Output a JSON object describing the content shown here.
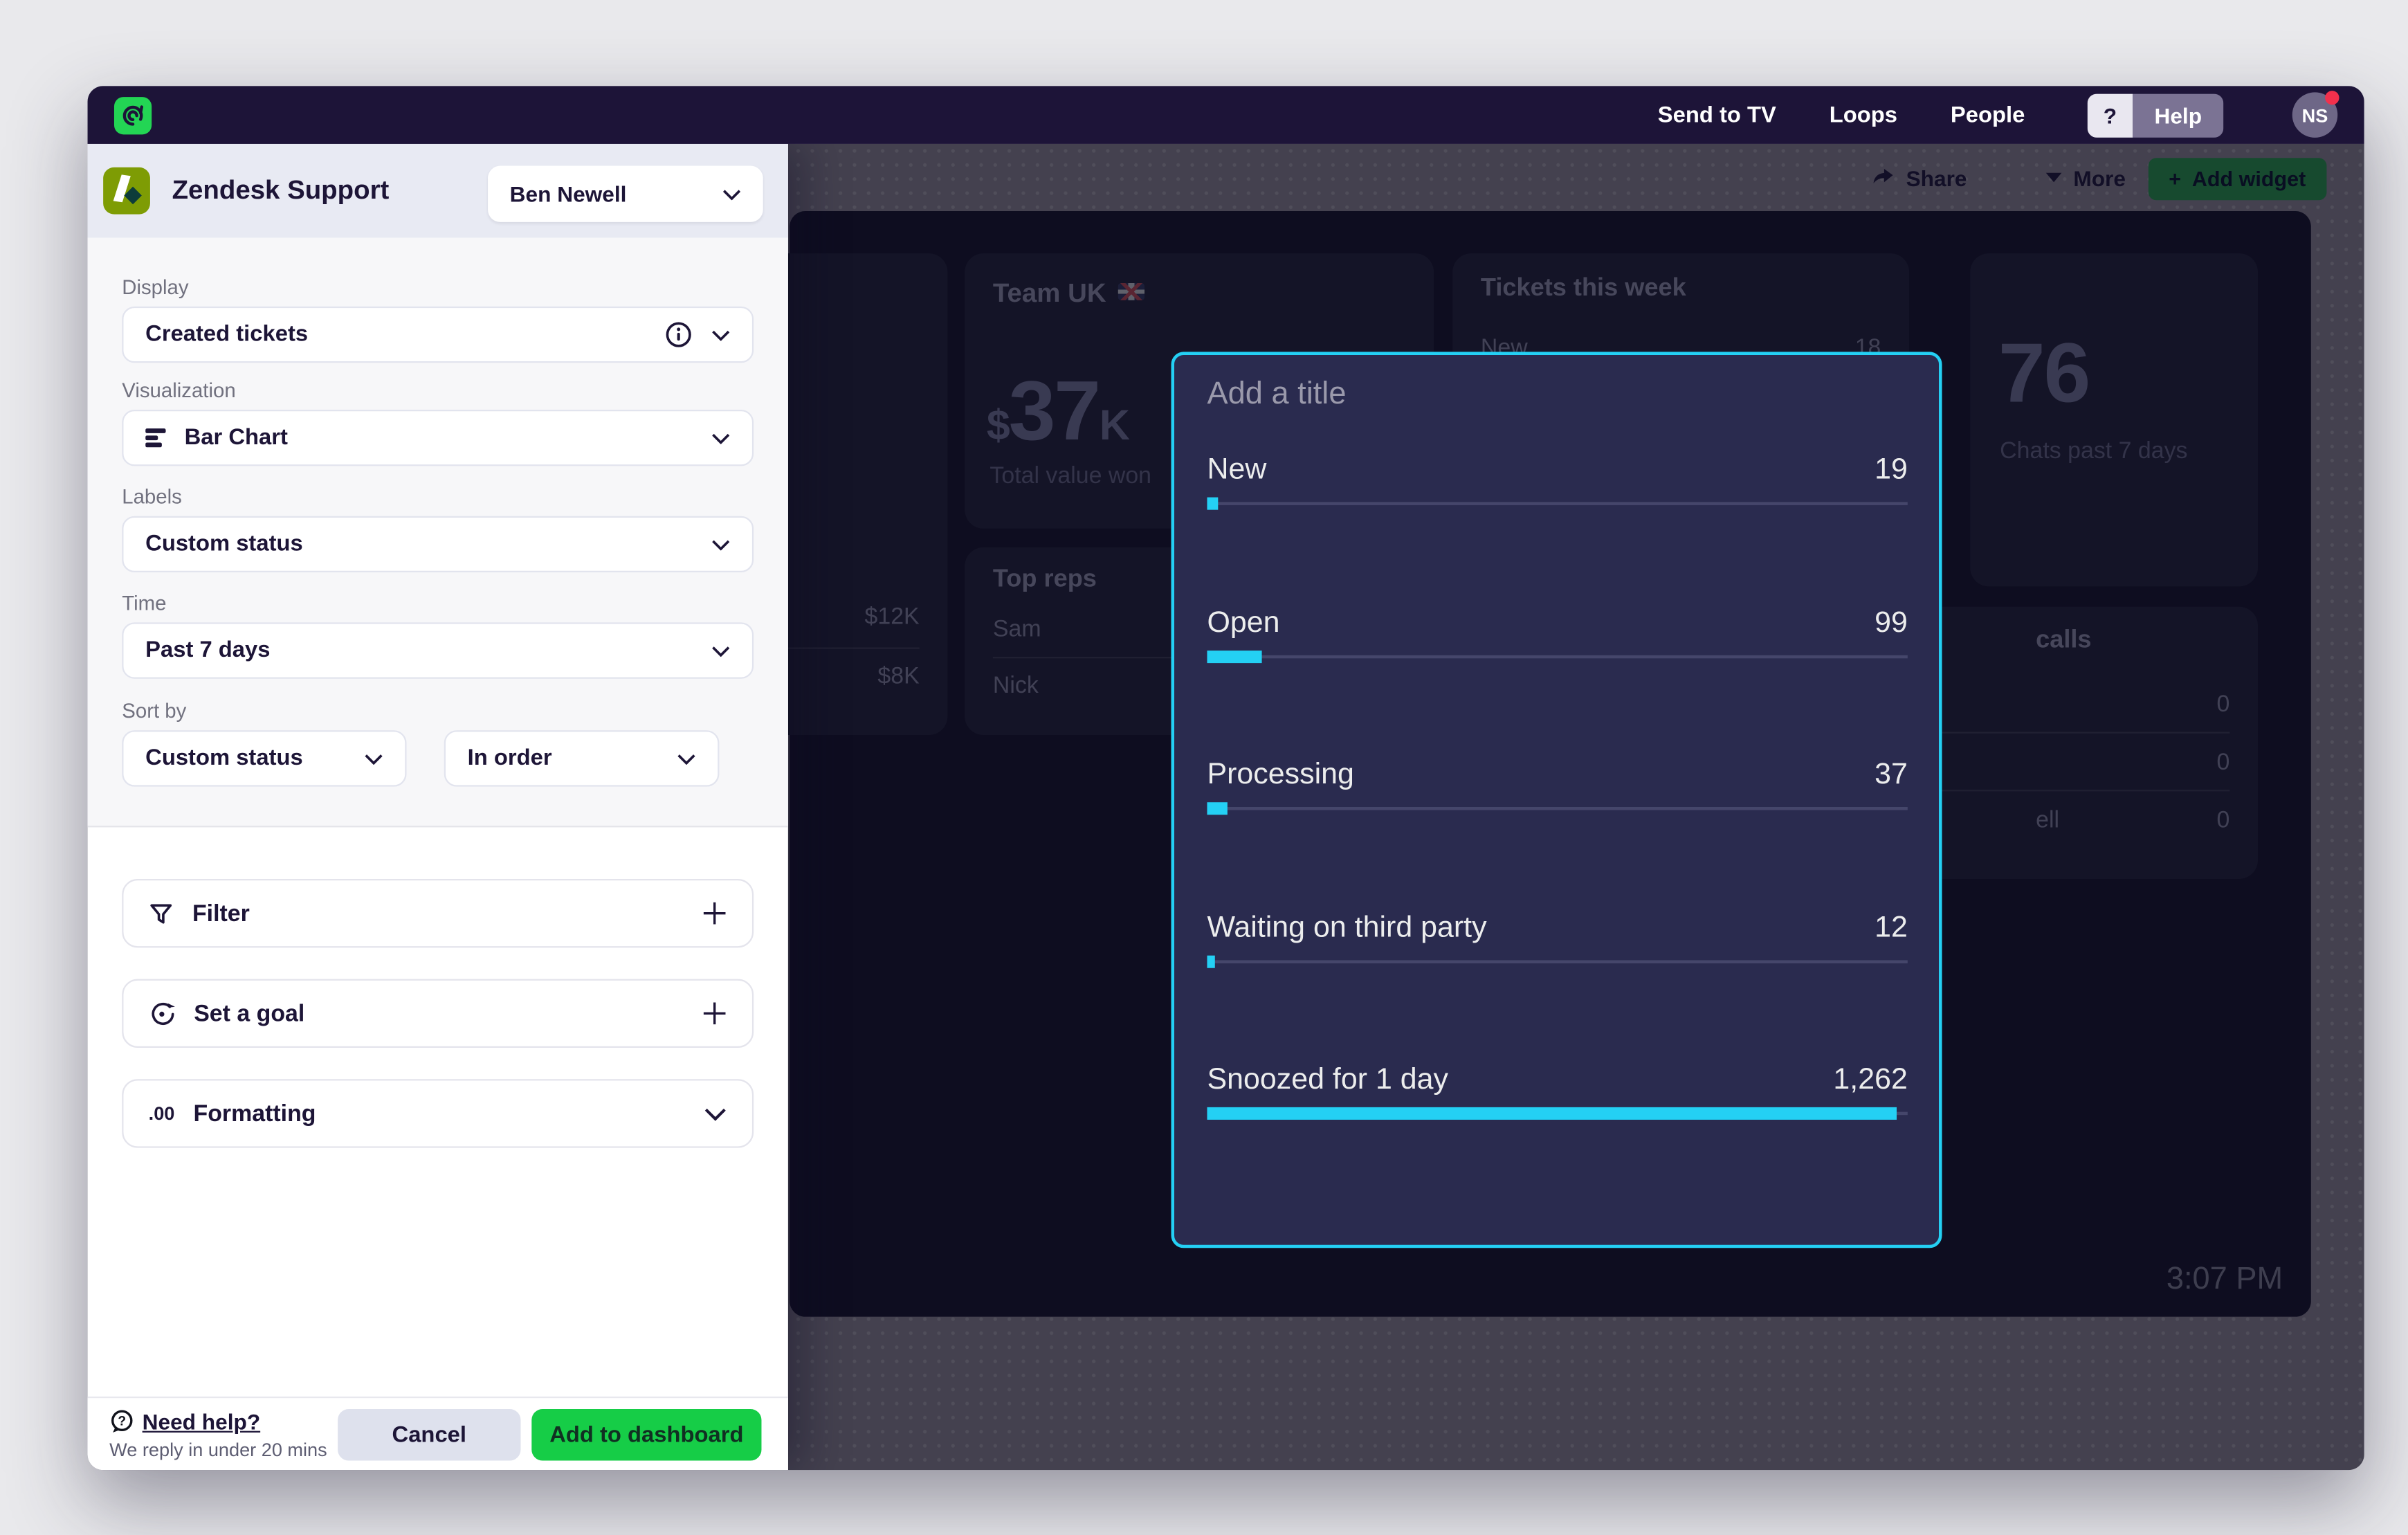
{
  "topbar": {
    "nav": [
      "Send to TV",
      "Loops",
      "People"
    ],
    "help_shortcut": "?",
    "help_label": "Help",
    "avatar_initials": "NS"
  },
  "panel": {
    "app_title": "Zendesk Support",
    "account_selector": "Ben Newell",
    "display": {
      "label": "Display",
      "value": "Created tickets"
    },
    "visualization": {
      "label": "Visualization",
      "value": "Bar Chart"
    },
    "labels": {
      "label": "Labels",
      "value": "Custom status"
    },
    "time": {
      "label": "Time",
      "value": "Past 7 days"
    },
    "sort": {
      "label": "Sort by",
      "field": "Custom status",
      "order": "In order"
    },
    "filter_label": "Filter",
    "goal_label": "Set a goal",
    "formatting_label": "Formatting",
    "formatting_icon": ".00",
    "footer": {
      "help_title": "Need help?",
      "help_subtitle": "We reply in under 20 mins",
      "cancel": "Cancel",
      "submit": "Add to dashboard"
    }
  },
  "dashboard": {
    "toolbar": {
      "share": "Share",
      "more": "More",
      "add_widget_plus": "+",
      "add_widget": "Add widget"
    },
    "team_uk": {
      "title": "Team UK",
      "value_prefix": "$",
      "value": "37",
      "value_suffix": "K",
      "caption": "Total value won"
    },
    "side_values": [
      "$12K",
      "$8K"
    ],
    "top_reps": {
      "title": "Top reps",
      "rows": [
        "Sam",
        "Nick"
      ]
    },
    "tickets": {
      "title": "Tickets this week",
      "row_label": "New",
      "row_value": "18"
    },
    "chats": {
      "value": "76",
      "caption": "Chats past 7 days"
    },
    "calls": {
      "title_fragment": "calls",
      "row_label_fragment": "ell",
      "values": [
        "0",
        "0",
        "0"
      ]
    },
    "clock": "3:07 PM"
  },
  "widget": {
    "title_placeholder": "Add a title"
  },
  "chart_data": {
    "type": "bar",
    "orientation": "horizontal",
    "title": "Add a title (placeholder)",
    "categories": [
      "New",
      "Open",
      "Processing",
      "Waiting on third party",
      "Snoozed for 1 day"
    ],
    "values": [
      19,
      99,
      37,
      12,
      1262
    ],
    "value_labels": [
      "19",
      "99",
      "37",
      "12",
      "1,262"
    ],
    "max": 1262,
    "bar_color": "#24d0f4",
    "track_color": "#45466b",
    "legend": "none",
    "grid": false
  }
}
